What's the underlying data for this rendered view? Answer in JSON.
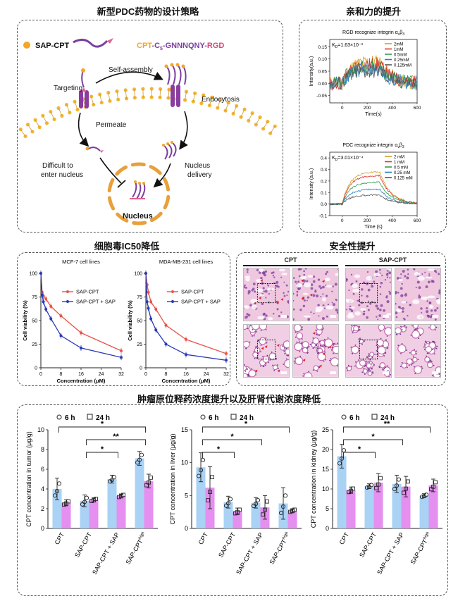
{
  "titles": {
    "strategy": "新型PDC药物的设计策略",
    "affinity": "亲和力的提升",
    "ic50": "细胞毒IC50降低",
    "safety": "安全性提升",
    "distribution": "肿瘤原位释药浓度提升以及肝肾代谢浓度降低"
  },
  "strategy": {
    "sap_label": "SAP-CPT",
    "formula": {
      "p1": "CPT",
      "p2": "-C",
      "sub": "5",
      "p3": "-GNNNQNY-",
      "p4": "RGD"
    },
    "targeting": "Targeting",
    "self_assembly": "Self-assembly",
    "endocytosis": "Endocytosis",
    "permeate": "Permeate",
    "difficult1": "Difficult to",
    "difficult2": "enter nucleus",
    "nd1": "Nucleus",
    "nd2": "delivery",
    "nucleus": "Nucleus"
  },
  "colors": {
    "sap_cpt": "#e8534a",
    "sap_cpt_sap": "#2a3bb8",
    "bar_6h": "#a9d2f5",
    "bar_24h": "#e58ff0",
    "conc_2mM": "#d4a017",
    "conc_1mM": "#e03030",
    "conc_05mM": "#2e9e4a",
    "conc_025mM": "#2a7fc0",
    "conc_0125mM": "#555555"
  },
  "affinity": {
    "rgd": {
      "title": "RGD recognize integrin α",
      "title_sub": "v",
      "title_end": "β",
      "title_sub2": "3",
      "kd": "K",
      "kd_sub": "D",
      "kd_val": "=1.63×10⁻³",
      "legend": [
        "2mM",
        "1mM",
        "0.5mM",
        "0.25mM",
        "0.125mM"
      ],
      "xlabel": "Time(s)",
      "ylabel": "Intensity(a.u.)",
      "yticks": [
        "0.15",
        "0.10",
        "0.05",
        "0.00",
        "-0.05"
      ],
      "xticks": [
        "0",
        "200",
        "400",
        "600"
      ]
    },
    "pdc": {
      "title": "PDC recognize integrin α",
      "title_sub": "v",
      "title_end": "β",
      "title_sub2": "3",
      "kd": "K",
      "kd_sub": "D",
      "kd_val": "=3.01×10⁻⁴",
      "legend": [
        "2 mM",
        "1 mM",
        "0.5 mM",
        "0.25 mM",
        "0.125 mM"
      ],
      "xlabel": "Time (s)",
      "ylabel": "Intensity (a.u.)",
      "yticks": [
        "0.4",
        "0.3",
        "0.2",
        "0.1",
        "0.0",
        "-0.1"
      ],
      "xticks": [
        "0",
        "200",
        "400",
        "600"
      ]
    }
  },
  "chart_data": [
    {
      "type": "line",
      "title": "MCF-7 cell lines",
      "xlabel": "Concentration (μM)",
      "ylabel": "Cell viability (%)",
      "xlim": [
        0,
        32
      ],
      "ylim": [
        0,
        100
      ],
      "xticks": [
        "0",
        "8",
        "16",
        "24",
        "32"
      ],
      "yticks": [
        "0",
        "25",
        "50",
        "75",
        "100"
      ],
      "x": [
        0,
        0.5,
        1,
        2,
        4,
        8,
        16,
        32
      ],
      "series": [
        {
          "name": "SAP-CPT",
          "values": [
            100,
            80,
            76,
            73,
            65,
            55,
            37,
            18
          ]
        },
        {
          "name": "SAP-CPT + SAP",
          "values": [
            100,
            77,
            70,
            62,
            52,
            34,
            21,
            11
          ]
        }
      ]
    },
    {
      "type": "line",
      "title": "MDA-MB-231 cell lines",
      "xlabel": "Concentration (μM)",
      "ylabel": "Cell viability (%)",
      "xlim": [
        0,
        32
      ],
      "ylim": [
        0,
        100
      ],
      "xticks": [
        "0",
        "8",
        "16",
        "24",
        "32"
      ],
      "yticks": [
        "0",
        "25",
        "50",
        "75",
        "100"
      ],
      "x": [
        0,
        0.5,
        1,
        2,
        4,
        8,
        16,
        32
      ],
      "series": [
        {
          "name": "SAP-CPT",
          "values": [
            100,
            88,
            80,
            70,
            62,
            45,
            30,
            15
          ]
        },
        {
          "name": "SAP-CPT + SAP",
          "values": [
            100,
            70,
            63,
            52,
            40,
            25,
            14,
            8
          ]
        }
      ]
    },
    {
      "type": "bar",
      "ylabel": "CPT concentration in tumor (μg/g)",
      "ylim": [
        0,
        10
      ],
      "yticks": [
        "0",
        "2",
        "4",
        "6",
        "8",
        "10"
      ],
      "categories": [
        "CPT",
        "SAP-CPT",
        "SAP-CPT + SAP",
        "SAP-CPT"
      ],
      "category_sup": [
        "",
        "",
        "",
        "high"
      ],
      "legend": [
        "6 h",
        "24 h"
      ],
      "series": [
        {
          "name": "6 h",
          "values": [
            4.0,
            2.8,
            5.0,
            7.1
          ],
          "errors": [
            1.1,
            0.6,
            0.4,
            0.7
          ]
        },
        {
          "name": "24 h",
          "values": [
            2.6,
            2.9,
            3.3,
            4.8
          ],
          "errors": [
            0.3,
            0.2,
            0.2,
            0.7
          ]
        }
      ],
      "significance": [
        {
          "from": 0,
          "to": 3,
          "label": "*"
        },
        {
          "from": 1,
          "to": 3,
          "label": "**"
        },
        {
          "from": 1,
          "to": 2,
          "label": "*"
        }
      ]
    },
    {
      "type": "bar",
      "ylabel": "CPT concentration in liver (μg/g)",
      "ylim": [
        0,
        15
      ],
      "yticks": [
        "0",
        "5",
        "10",
        "15"
      ],
      "categories": [
        "CPT",
        "SAP-CPT",
        "SAP-CPT + SAP",
        "SAP-CPT"
      ],
      "category_sup": [
        "",
        "",
        "",
        "high"
      ],
      "legend": [
        "6 h",
        "24 h"
      ],
      "series": [
        {
          "name": "6 h",
          "values": [
            9.3,
            4.0,
            3.9,
            3.8
          ],
          "errors": [
            2.2,
            0.9,
            0.8,
            2.4
          ]
        },
        {
          "name": "24 h",
          "values": [
            6.2,
            2.6,
            3.2,
            2.7
          ],
          "errors": [
            3.2,
            0.5,
            1.8,
            0.3
          ]
        }
      ],
      "significance": [
        {
          "from": 0,
          "to": 3,
          "label": "*"
        },
        {
          "from": 0,
          "to": 2,
          "label": "*"
        },
        {
          "from": 0,
          "to": 1,
          "label": "*"
        }
      ]
    },
    {
      "type": "bar",
      "ylabel": "CPT concentration in kidney (μg/g)",
      "ylim": [
        0,
        25
      ],
      "yticks": [
        "0",
        "5",
        "10",
        "15",
        "20",
        "25"
      ],
      "categories": [
        "CPT",
        "SAP-CPT",
        "SAP-CPT + SAP",
        "SAP-CPT"
      ],
      "category_sup": [
        "",
        "",
        "",
        "high"
      ],
      "legend": [
        "6 h",
        "24 h"
      ],
      "series": [
        {
          "name": "6 h",
          "values": [
            18.3,
            10.7,
            11.3,
            8.3
          ],
          "errors": [
            3.0,
            0.6,
            2.2,
            0.5
          ]
        },
        {
          "name": "24 h",
          "values": [
            9.7,
            11.6,
            10.6,
            10.9
          ],
          "errors": [
            0.8,
            2.3,
            2.6,
            1.6
          ]
        }
      ],
      "significance": [
        {
          "from": 0,
          "to": 3,
          "label": "**"
        },
        {
          "from": 0,
          "to": 2,
          "label": "*"
        },
        {
          "from": 0,
          "to": 1,
          "label": "*"
        }
      ]
    }
  ],
  "safety": {
    "cpt_label": "CPT",
    "sap_cpt_label": "SAP-CPT"
  }
}
